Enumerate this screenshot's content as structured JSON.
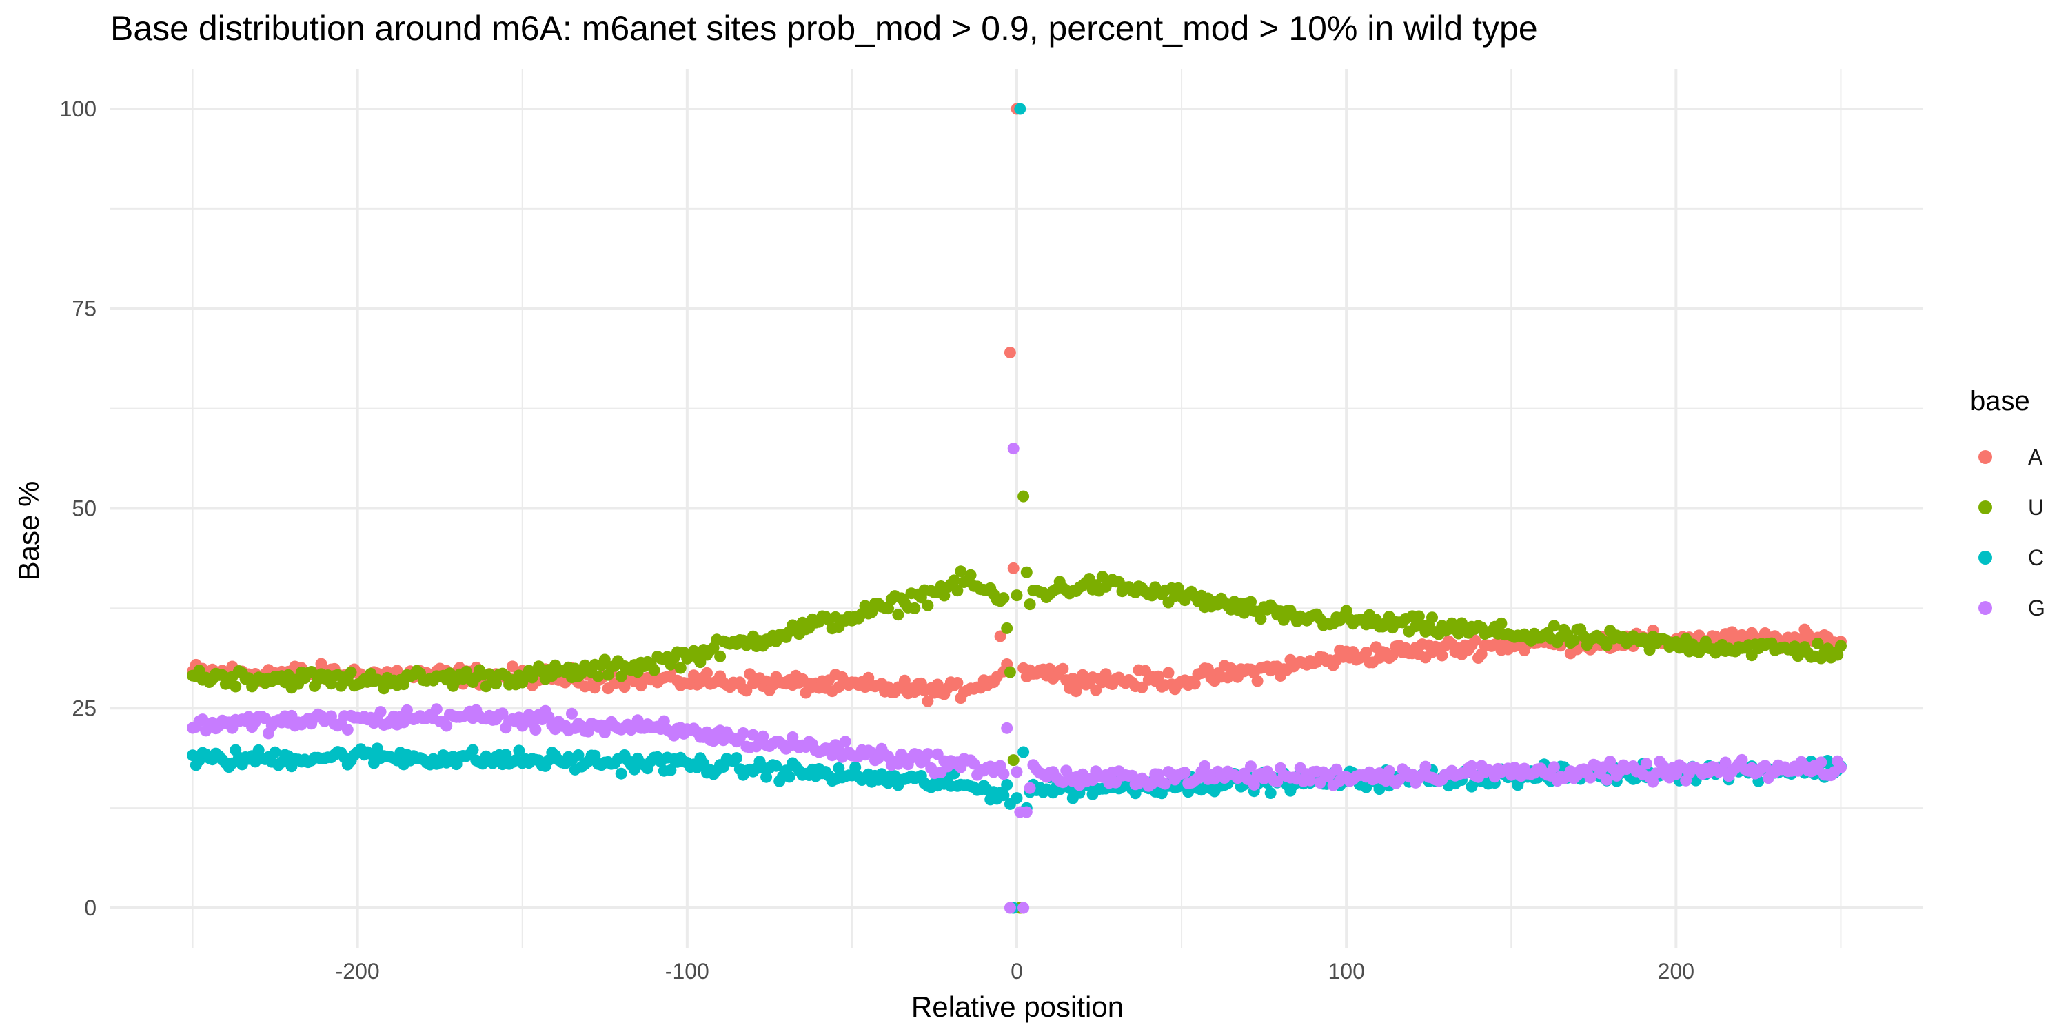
{
  "chart_data": {
    "type": "scatter",
    "title": "Base distribution around m6A: m6anet sites prob_mod > 0.9, percent_mod > 10% in wild type",
    "xlabel": "Relative position",
    "ylabel": "Base %",
    "xlim": [
      -275,
      275
    ],
    "ylim": [
      -5,
      105
    ],
    "x_ticks": [
      -200,
      -100,
      0,
      100,
      200
    ],
    "x_tick_labels": [
      "-200",
      "-100",
      "0",
      "100",
      "200"
    ],
    "y_ticks": [
      0,
      25,
      50,
      75,
      100
    ],
    "y_tick_labels": [
      "0",
      "25",
      "50",
      "75",
      "100"
    ],
    "grid": true,
    "legend": {
      "title": "base",
      "position": "right"
    },
    "x_range": [
      -250,
      250
    ],
    "series": [
      {
        "name": "A",
        "color": "#F8766D",
        "profile": [
          [
            -250,
            29.5
          ],
          [
            -150,
            29.0
          ],
          [
            -100,
            28.5
          ],
          [
            -50,
            27.8
          ],
          [
            -20,
            27.0
          ],
          [
            -4,
            29.0
          ],
          [
            4,
            30.0
          ],
          [
            20,
            28.5
          ],
          [
            50,
            28.5
          ],
          [
            80,
            30.0
          ],
          [
            100,
            31.5
          ],
          [
            150,
            33.0
          ],
          [
            200,
            33.5
          ],
          [
            250,
            33.5
          ]
        ],
        "special": [
          [
            -2,
            69.5
          ],
          [
            -1,
            42.5
          ],
          [
            0,
            100
          ],
          [
            1,
            0
          ],
          [
            2,
            30.0
          ],
          [
            -3,
            30.5
          ],
          [
            -5,
            34.0
          ]
        ]
      },
      {
        "name": "U",
        "color": "#7CAE00",
        "profile": [
          [
            -250,
            29.0
          ],
          [
            -200,
            28.5
          ],
          [
            -150,
            29.0
          ],
          [
            -120,
            30.0
          ],
          [
            -100,
            31.5
          ],
          [
            -80,
            33.5
          ],
          [
            -60,
            35.5
          ],
          [
            -40,
            37.5
          ],
          [
            -25,
            39.5
          ],
          [
            -15,
            41.0
          ],
          [
            -5,
            38.5
          ],
          [
            5,
            39.5
          ],
          [
            25,
            40.5
          ],
          [
            50,
            39.0
          ],
          [
            80,
            36.5
          ],
          [
            100,
            36.0
          ],
          [
            130,
            35.0
          ],
          [
            160,
            34.0
          ],
          [
            200,
            33.0
          ],
          [
            250,
            32.0
          ]
        ],
        "special": [
          [
            -3,
            35.0
          ],
          [
            -2,
            29.5
          ],
          [
            -1,
            18.5
          ],
          [
            1,
            0
          ],
          [
            2,
            51.5
          ],
          [
            3,
            42.0
          ],
          [
            4,
            38.0
          ]
        ]
      },
      {
        "name": "C",
        "color": "#00BFC4",
        "profile": [
          [
            -250,
            18.5
          ],
          [
            -200,
            19.0
          ],
          [
            -150,
            18.5
          ],
          [
            -100,
            18.0
          ],
          [
            -50,
            16.5
          ],
          [
            -20,
            15.5
          ],
          [
            -5,
            14.5
          ],
          [
            5,
            15.0
          ],
          [
            20,
            15.0
          ],
          [
            50,
            15.5
          ],
          [
            100,
            16.0
          ],
          [
            150,
            16.5
          ],
          [
            200,
            17.0
          ],
          [
            250,
            17.5
          ]
        ],
        "special": [
          [
            -2,
            13.0
          ],
          [
            -1,
            0
          ],
          [
            1,
            100
          ],
          [
            2,
            19.5
          ],
          [
            3,
            12.5
          ],
          [
            4,
            14.5
          ]
        ]
      },
      {
        "name": "G",
        "color": "#C77CFF",
        "profile": [
          [
            -250,
            23.0
          ],
          [
            -200,
            23.5
          ],
          [
            -170,
            24.0
          ],
          [
            -150,
            23.5
          ],
          [
            -100,
            22.0
          ],
          [
            -80,
            21.0
          ],
          [
            -50,
            19.5
          ],
          [
            -20,
            18.0
          ],
          [
            -5,
            17.5
          ],
          [
            5,
            17.0
          ],
          [
            20,
            16.0
          ],
          [
            50,
            16.5
          ],
          [
            100,
            16.5
          ],
          [
            150,
            17.0
          ],
          [
            200,
            17.0
          ],
          [
            250,
            17.5
          ]
        ],
        "special": [
          [
            -3,
            22.5
          ],
          [
            -2,
            0
          ],
          [
            -1,
            57.5
          ],
          [
            1,
            12.0
          ],
          [
            2,
            0
          ],
          [
            3,
            12.0
          ],
          [
            4,
            15.0
          ]
        ]
      }
    ]
  }
}
